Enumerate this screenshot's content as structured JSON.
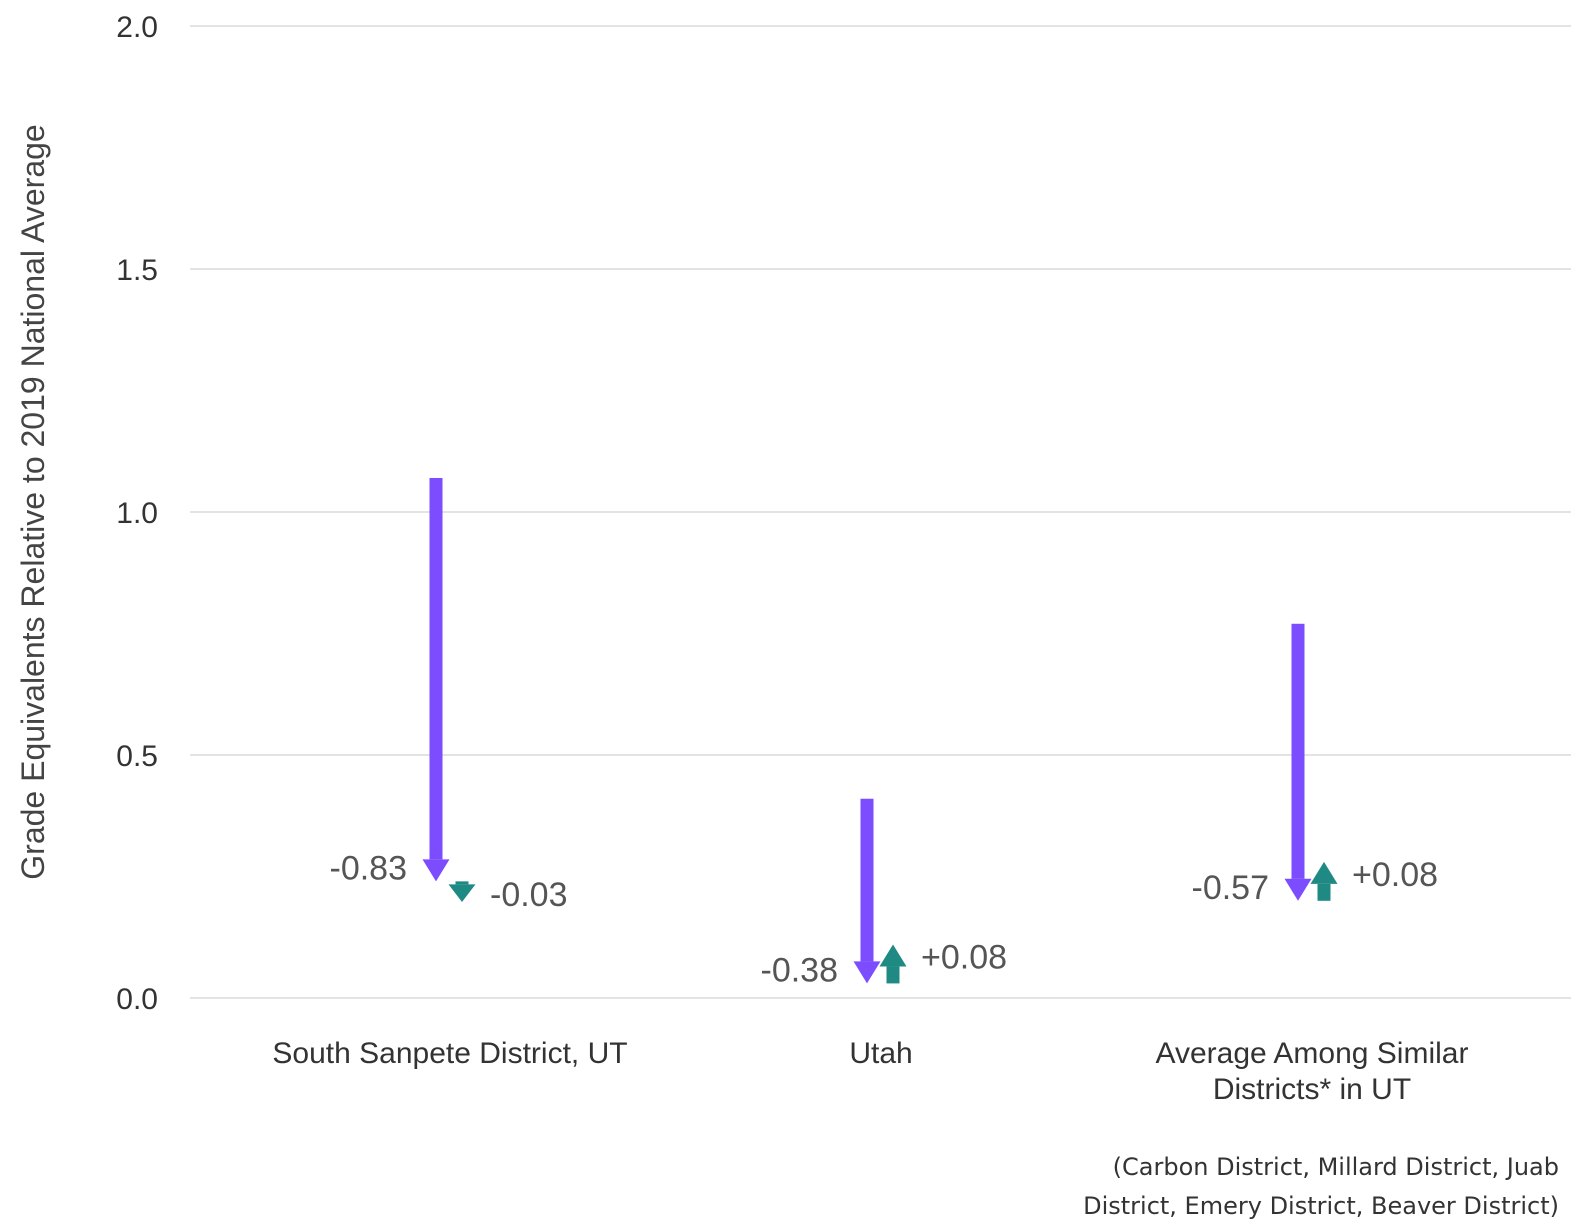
{
  "chart_data": {
    "type": "arrow",
    "ylabel": "Grade Equivalents Relative to 2019 National Average",
    "ylim": [
      0,
      2.0
    ],
    "yticks": [
      "0.0",
      "0.5",
      "1.0",
      "1.5",
      "2.0"
    ],
    "grid": true,
    "categories": [
      [
        "South Sanpete District, UT"
      ],
      [
        "Utah"
      ],
      [
        "Average Among Similar",
        "Districts* in UT"
      ]
    ],
    "series": [
      {
        "start": [
          1.07,
          0.41,
          0.77
        ],
        "change": [
          -0.83,
          -0.38,
          -0.57
        ],
        "labels": [
          "-0.83",
          "-0.38",
          "-0.57"
        ],
        "color": "#7c4dff"
      },
      {
        "start": [
          0.24,
          0.03,
          0.2
        ],
        "change": [
          -0.03,
          0.08,
          0.08
        ],
        "labels": [
          "-0.03",
          "+0.08",
          "+0.08"
        ],
        "color": "#1f8a83"
      }
    ],
    "footnote": [
      "(Carbon District, Millard District, Juab",
      "District, Emery District, Beaver District)"
    ]
  }
}
